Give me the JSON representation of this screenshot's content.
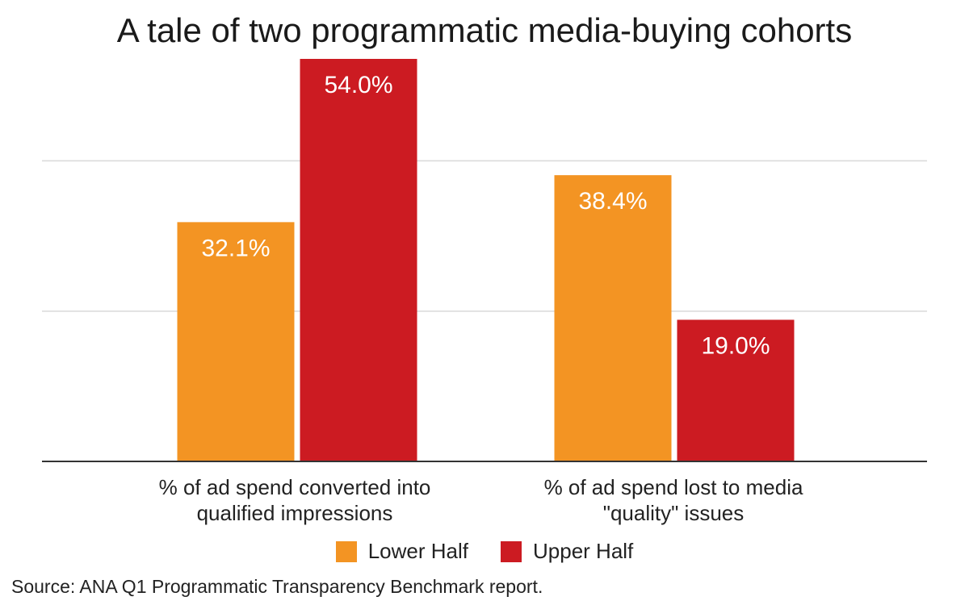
{
  "chart_data": {
    "type": "bar",
    "title": "A tale of two programmatic media-buying cohorts",
    "categories": [
      "% of ad spend converted into qualified impressions",
      "% of ad spend lost to media \"quality\" issues"
    ],
    "series": [
      {
        "name": "Lower Half",
        "values": [
          32.1,
          38.4
        ],
        "labels": [
          "32.1%",
          "38.4%"
        ],
        "color": "#f39423"
      },
      {
        "name": "Upper Half",
        "values": [
          54.0,
          19.0
        ],
        "labels": [
          "54.0%",
          "19.0%"
        ],
        "color": "#cc1b22"
      }
    ],
    "ylim": [
      0,
      54
    ],
    "grid": true,
    "legend": "bottom",
    "xlabel": "",
    "ylabel": ""
  },
  "categories_display": {
    "cat1": {
      "line1": "% of ad spend converted into",
      "line2": "qualified impressions"
    },
    "cat2": {
      "line1": "% of ad spend lost to media",
      "line2": "\"quality\" issues"
    }
  },
  "source": "Source: ANA Q1 Programmatic Transparency Benchmark report."
}
